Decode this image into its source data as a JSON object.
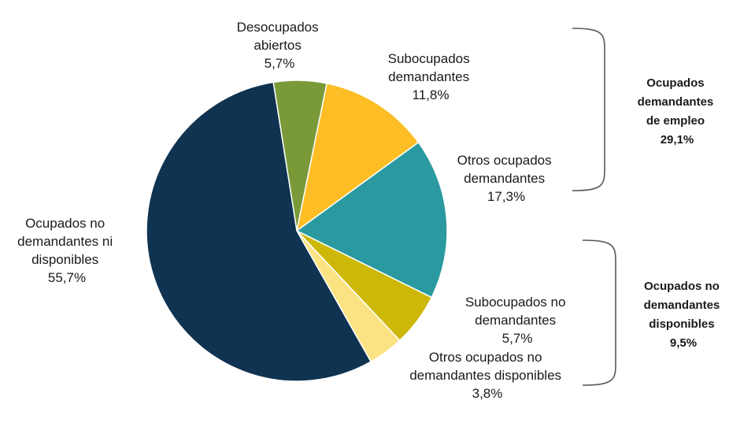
{
  "chart_data": {
    "type": "pie",
    "start_angle_deg": 351,
    "direction": "clockwise",
    "slices": [
      {
        "label_lines": [
          "Desocupados",
          "abiertos",
          "5,7%"
        ],
        "value": 5.7,
        "color": "#7a9a3a"
      },
      {
        "label_lines": [
          "Subocupados",
          "demandantes",
          "11,8%"
        ],
        "value": 11.8,
        "color": "#fdbd24"
      },
      {
        "label_lines": [
          "Otros ocupados",
          "demandantes",
          "17,3%"
        ],
        "value": 17.3,
        "color": "#2a9aa0"
      },
      {
        "label_lines": [
          "Subocupados no",
          "demandantes",
          "5,7%"
        ],
        "value": 5.7,
        "color": "#cdb80a"
      },
      {
        "label_lines": [
          "Otros ocupados no",
          "demandantes disponibles",
          "3,8%"
        ],
        "value": 3.8,
        "color": "#fbe283"
      },
      {
        "label_lines": [
          "Ocupados no",
          "demandantes ni",
          "disponibles",
          "55,7%"
        ],
        "value": 55.7,
        "color": "#0f3350"
      }
    ],
    "groups": [
      {
        "label_lines": [
          "Ocupados",
          "demandantes",
          "de empleo",
          "29,1%"
        ],
        "value": 29.1
      },
      {
        "label_lines": [
          "Ocupados no",
          "demandantes",
          "disponibles",
          "9,5%"
        ],
        "value": 9.5
      }
    ]
  }
}
